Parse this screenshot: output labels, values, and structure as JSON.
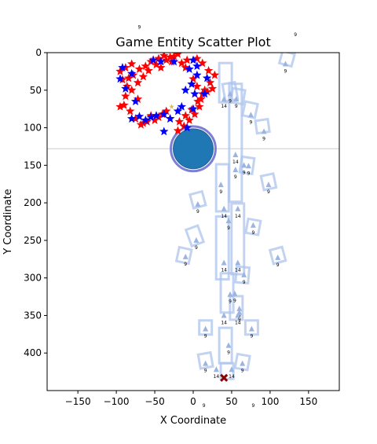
{
  "chart_data": {
    "type": "scatter",
    "title": "Game Entity Scatter Plot",
    "xlabel": "X Coordinate",
    "ylabel": "Y Coordinate",
    "xlim": [
      -190,
      190
    ],
    "ylim": [
      450,
      0
    ],
    "y_inverted": true,
    "x_ticks": [
      -150,
      -100,
      -50,
      0,
      50,
      100,
      150
    ],
    "y_ticks": [
      0,
      50,
      100,
      150,
      200,
      250,
      300,
      350,
      400
    ],
    "grid": false,
    "legend": "none",
    "colors": {
      "red_star": "#ff0000",
      "blue_star": "#0000ff",
      "circle_fill": "#1f77b4",
      "circle_ring": "#7b7fd6",
      "wall": "#aec4ee",
      "triangle": "#9cb4e0",
      "cross": "#8b0000",
      "hline": "#cccccc"
    },
    "horizontal_line_y": 128,
    "big_circle": {
      "x": 0,
      "y": 128,
      "radius": 26
    },
    "red_stars": [
      {
        "x": -95,
        "y": 25
      },
      {
        "x": -88,
        "y": 20
      },
      {
        "x": -80,
        "y": 15
      },
      {
        "x": -70,
        "y": 22
      },
      {
        "x": -62,
        "y": 18
      },
      {
        "x": -55,
        "y": 12
      },
      {
        "x": -45,
        "y": 8
      },
      {
        "x": -35,
        "y": 10
      },
      {
        "x": -25,
        "y": 5
      },
      {
        "x": -15,
        "y": 14
      },
      {
        "x": -8,
        "y": 10
      },
      {
        "x": 5,
        "y": 8
      },
      {
        "x": 12,
        "y": 14
      },
      {
        "x": 20,
        "y": 24
      },
      {
        "x": 28,
        "y": 30
      },
      {
        "x": 22,
        "y": 40
      },
      {
        "x": 15,
        "y": 50
      },
      {
        "x": 10,
        "y": 62
      },
      {
        "x": 8,
        "y": 72
      },
      {
        "x": 2,
        "y": 82
      },
      {
        "x": -5,
        "y": 90
      },
      {
        "x": -12,
        "y": 98
      },
      {
        "x": -20,
        "y": 104
      },
      {
        "x": -30,
        "y": 88
      },
      {
        "x": -40,
        "y": 82
      },
      {
        "x": -50,
        "y": 90
      },
      {
        "x": -60,
        "y": 92
      },
      {
        "x": -68,
        "y": 96
      },
      {
        "x": -75,
        "y": 88
      },
      {
        "x": -82,
        "y": 78
      },
      {
        "x": -90,
        "y": 70
      },
      {
        "x": -88,
        "y": 58
      },
      {
        "x": -86,
        "y": 45
      },
      {
        "x": -92,
        "y": 36
      },
      {
        "x": -78,
        "y": 30
      },
      {
        "x": -72,
        "y": 40
      },
      {
        "x": -65,
        "y": 32
      },
      {
        "x": -58,
        "y": 24
      },
      {
        "x": -48,
        "y": 16
      },
      {
        "x": -38,
        "y": 4
      },
      {
        "x": -28,
        "y": 12
      },
      {
        "x": -20,
        "y": 2
      },
      {
        "x": -10,
        "y": 20
      },
      {
        "x": 0,
        "y": 35
      },
      {
        "x": 5,
        "y": 45
      },
      {
        "x": 12,
        "y": 55
      },
      {
        "x": 18,
        "y": 52
      },
      {
        "x": 25,
        "y": 48
      },
      {
        "x": 6,
        "y": 65
      },
      {
        "x": -2,
        "y": 76
      },
      {
        "x": -10,
        "y": 84
      },
      {
        "x": -18,
        "y": 92
      },
      {
        "x": -35,
        "y": 78
      },
      {
        "x": -45,
        "y": 86
      },
      {
        "x": -55,
        "y": 84
      },
      {
        "x": -65,
        "y": 94
      },
      {
        "x": -72,
        "y": 62
      },
      {
        "x": -80,
        "y": 50
      },
      {
        "x": -95,
        "y": 72
      },
      {
        "x": -84,
        "y": 34
      },
      {
        "x": -52,
        "y": 10
      },
      {
        "x": -42,
        "y": 20
      },
      {
        "x": -30,
        "y": 6
      }
    ],
    "blue_stars": [
      {
        "x": -95,
        "y": 35
      },
      {
        "x": -92,
        "y": 20
      },
      {
        "x": -80,
        "y": 28
      },
      {
        "x": -52,
        "y": 10
      },
      {
        "x": -42,
        "y": 12
      },
      {
        "x": -25,
        "y": 12
      },
      {
        "x": -5,
        "y": 22
      },
      {
        "x": 0,
        "y": 10
      },
      {
        "x": 5,
        "y": 18
      },
      {
        "x": -2,
        "y": 42
      },
      {
        "x": 2,
        "y": 55
      },
      {
        "x": 15,
        "y": 55
      },
      {
        "x": 18,
        "y": 34
      },
      {
        "x": -10,
        "y": 50
      },
      {
        "x": 0,
        "y": 75
      },
      {
        "x": -20,
        "y": 78
      },
      {
        "x": -30,
        "y": 88
      },
      {
        "x": -38,
        "y": 82
      },
      {
        "x": -48,
        "y": 84
      },
      {
        "x": -55,
        "y": 86
      },
      {
        "x": -62,
        "y": 90
      },
      {
        "x": -70,
        "y": 85
      },
      {
        "x": -80,
        "y": 88
      },
      {
        "x": -88,
        "y": 48
      },
      {
        "x": -75,
        "y": 65
      },
      {
        "x": -8,
        "y": 100
      },
      {
        "x": -15,
        "y": 72
      },
      {
        "x": 5,
        "y": 30
      },
      {
        "x": -38,
        "y": 105
      }
    ],
    "small_yellow": [
      {
        "x": -28,
        "y": 72
      }
    ],
    "walls": [
      {
        "x": 42,
        "y": 40,
        "w": 16,
        "h": 50,
        "rot": 0
      },
      {
        "x": 48,
        "y": 52,
        "w": 16,
        "h": 22,
        "rot": -10
      },
      {
        "x": 58,
        "y": 58,
        "w": 16,
        "h": 18,
        "rot": 10
      },
      {
        "x": 74,
        "y": 76,
        "w": 16,
        "h": 18,
        "rot": 12
      },
      {
        "x": 90,
        "y": 98,
        "w": 16,
        "h": 16,
        "rot": -8
      },
      {
        "x": 122,
        "y": 8,
        "w": 16,
        "h": 16,
        "rot": 15
      },
      {
        "x": 55,
        "y": 120,
        "w": 16,
        "h": 150,
        "rot": 0
      },
      {
        "x": 38,
        "y": 180,
        "w": 16,
        "h": 60,
        "rot": 0
      },
      {
        "x": 70,
        "y": 150,
        "w": 16,
        "h": 20,
        "rot": 8
      },
      {
        "x": 98,
        "y": 172,
        "w": 16,
        "h": 18,
        "rot": -12
      },
      {
        "x": 6,
        "y": 196,
        "w": 16,
        "h": 18,
        "rot": -15
      },
      {
        "x": 78,
        "y": 232,
        "w": 16,
        "h": 18,
        "rot": 10
      },
      {
        "x": 2,
        "y": 244,
        "w": 16,
        "h": 22,
        "rot": -20
      },
      {
        "x": -12,
        "y": 270,
        "w": 16,
        "h": 18,
        "rot": 12
      },
      {
        "x": 110,
        "y": 270,
        "w": 16,
        "h": 18,
        "rot": -15
      },
      {
        "x": 58,
        "y": 248,
        "w": 16,
        "h": 90,
        "rot": 0
      },
      {
        "x": 38,
        "y": 260,
        "w": 16,
        "h": 80,
        "rot": 0
      },
      {
        "x": 64,
        "y": 296,
        "w": 16,
        "h": 20,
        "rot": 5
      },
      {
        "x": 44,
        "y": 320,
        "w": 16,
        "h": 50,
        "rot": 0
      },
      {
        "x": 56,
        "y": 340,
        "w": 16,
        "h": 30,
        "rot": 0
      },
      {
        "x": 16,
        "y": 366,
        "w": 16,
        "h": 18,
        "rot": 0
      },
      {
        "x": 76,
        "y": 366,
        "w": 16,
        "h": 18,
        "rot": 0
      },
      {
        "x": 42,
        "y": 390,
        "w": 16,
        "h": 45,
        "rot": 0
      },
      {
        "x": 16,
        "y": 410,
        "w": 16,
        "h": 18,
        "rot": -10
      },
      {
        "x": 64,
        "y": 412,
        "w": 16,
        "h": 18,
        "rot": 10
      },
      {
        "x": 44,
        "y": 424,
        "w": 16,
        "h": 20,
        "rot": 0
      }
    ],
    "triangles": [
      {
        "x": 48,
        "y": 55,
        "label": "9"
      },
      {
        "x": 40,
        "y": 62,
        "label": "14"
      },
      {
        "x": 56,
        "y": 62,
        "label": "9"
      },
      {
        "x": 75,
        "y": 83,
        "label": "9"
      },
      {
        "x": 92,
        "y": 105,
        "label": "9"
      },
      {
        "x": 120,
        "y": 15,
        "label": "9"
      },
      {
        "x": 55,
        "y": 136,
        "label": "14"
      },
      {
        "x": 66,
        "y": 150,
        "label": "9"
      },
      {
        "x": 72,
        "y": 151,
        "label": "9"
      },
      {
        "x": 55,
        "y": 156,
        "label": "9"
      },
      {
        "x": 36,
        "y": 176,
        "label": "9"
      },
      {
        "x": 98,
        "y": 176,
        "label": "9"
      },
      {
        "x": 6,
        "y": 202,
        "label": "9"
      },
      {
        "x": 40,
        "y": 208,
        "label": "14"
      },
      {
        "x": 58,
        "y": 208,
        "label": "14"
      },
      {
        "x": 46,
        "y": 224,
        "label": "9"
      },
      {
        "x": 78,
        "y": 230,
        "label": "9"
      },
      {
        "x": 4,
        "y": 250,
        "label": "9"
      },
      {
        "x": -10,
        "y": 272,
        "label": "9"
      },
      {
        "x": 110,
        "y": 273,
        "label": "9"
      },
      {
        "x": 40,
        "y": 280,
        "label": "14"
      },
      {
        "x": 58,
        "y": 280,
        "label": "14"
      },
      {
        "x": 66,
        "y": 296,
        "label": "9"
      },
      {
        "x": 48,
        "y": 322,
        "label": "9"
      },
      {
        "x": 54,
        "y": 321,
        "label": "9"
      },
      {
        "x": 60,
        "y": 341,
        "label": "9"
      },
      {
        "x": 60,
        "y": 346,
        "label": "9"
      },
      {
        "x": 40,
        "y": 350,
        "label": "14"
      },
      {
        "x": 58,
        "y": 350,
        "label": "14"
      },
      {
        "x": 16,
        "y": 368,
        "label": "9"
      },
      {
        "x": 76,
        "y": 368,
        "label": "9"
      },
      {
        "x": 46,
        "y": 390,
        "label": "9"
      },
      {
        "x": 16,
        "y": 414,
        "label": "9"
      },
      {
        "x": 64,
        "y": 414,
        "label": "9"
      },
      {
        "x": 30,
        "y": 422,
        "label": "14"
      },
      {
        "x": 50,
        "y": 422,
        "label": "14"
      }
    ],
    "cross": {
      "x": 40,
      "y": 433
    },
    "stray_labels": [
      {
        "x": -70,
        "y": -32,
        "text": "9"
      },
      {
        "x": 133,
        "y": -22,
        "text": "9"
      },
      {
        "x": 14,
        "y": 472,
        "text": "9"
      },
      {
        "x": 78,
        "y": 472,
        "text": "9"
      }
    ]
  }
}
